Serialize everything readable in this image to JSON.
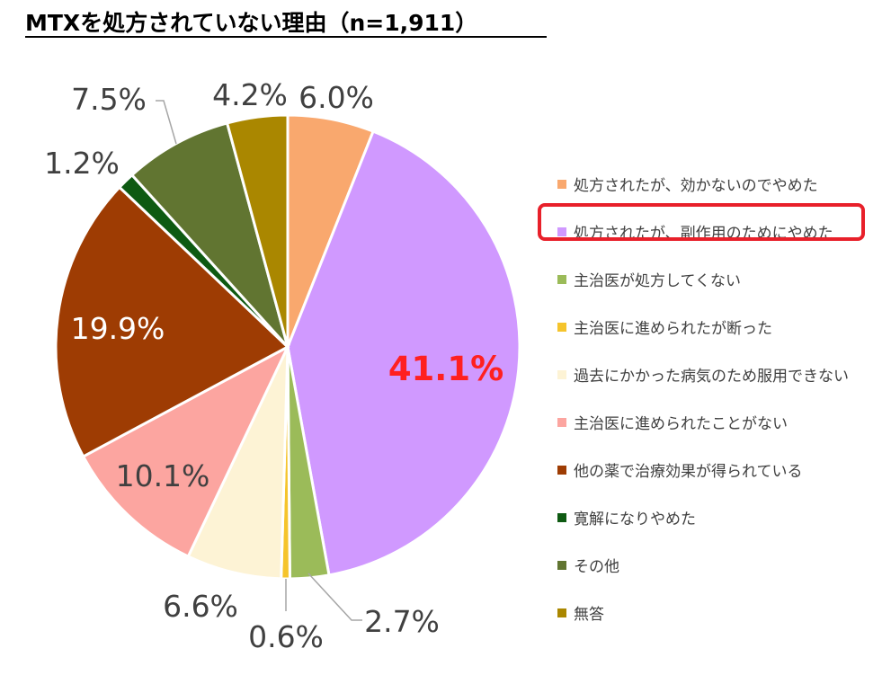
{
  "title": "MTXを処方されていない理由（n=1,911）",
  "chart_data": {
    "type": "pie",
    "n": "1,911",
    "slices": [
      {
        "label": "処方されたが、効かないのでやめた",
        "value": 6.0,
        "value_label": "6.0%",
        "color": "#F9A86E"
      },
      {
        "label": "処方されたが、副作用のためにやめた",
        "value": 41.1,
        "value_label": "41.1%",
        "color": "#D099FF",
        "highlight": true
      },
      {
        "label": "主治医が処方してくない",
        "value": 2.7,
        "value_label": "2.7%",
        "color": "#9BBB59"
      },
      {
        "label": "主治医に進められたが断った",
        "value": 0.6,
        "value_label": "0.6%",
        "color": "#F5C42C"
      },
      {
        "label": "過去にかかった病気のため服用できない",
        "value": 6.6,
        "value_label": "6.6%",
        "color": "#FDF3D5"
      },
      {
        "label": "主治医に進められたことがない",
        "value": 10.1,
        "value_label": "10.1%",
        "color": "#FCA5A0"
      },
      {
        "label": "他の薬で治療効果が得られている",
        "value": 19.9,
        "value_label": "19.9%",
        "color": "#9E3C03"
      },
      {
        "label": "寛解になりやめた",
        "value": 1.2,
        "value_label": "1.2%",
        "color": "#0E5A12"
      },
      {
        "label": "その他",
        "value": 7.5,
        "value_label": "7.5%",
        "color": "#617531"
      },
      {
        "label": "無答",
        "value": 4.2,
        "value_label": "4.2%",
        "color": "#AA8700"
      }
    ],
    "legend_position": "right",
    "highlight_color": "#FF2020"
  }
}
